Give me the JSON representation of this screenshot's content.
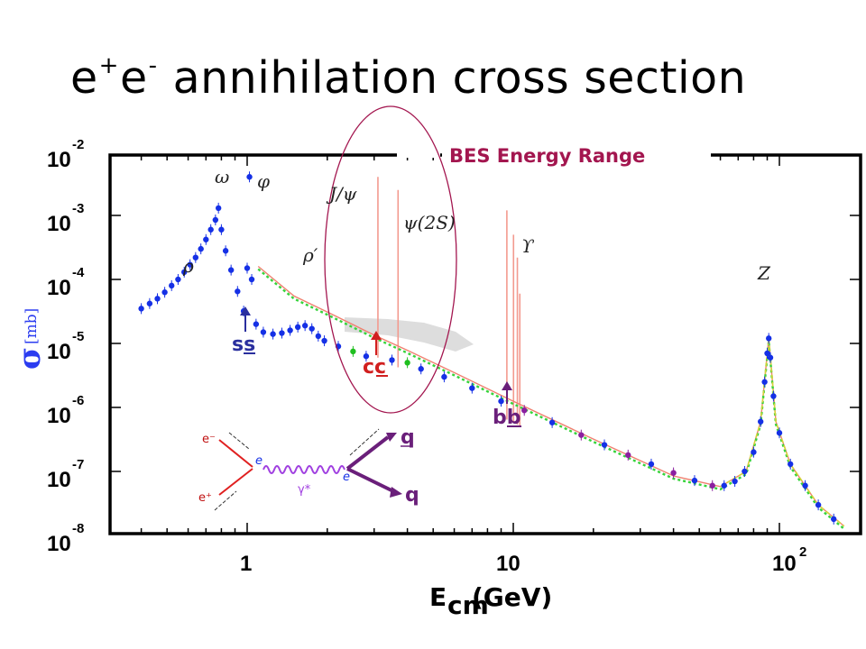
{
  "title": {
    "pre": "e",
    "sup1": "+",
    "mid": "e",
    "sup2": "-",
    "post": " annihilation cross section"
  },
  "bes_label": "BES Energy Range",
  "chart_data": {
    "type": "scatter",
    "x_label": {
      "main": "E",
      "sub": "cm",
      "rest": "(GeV)"
    },
    "y_label": {
      "symbol": "σ",
      "unit": "[mb]"
    },
    "x_scale": "log",
    "y_scale": "log",
    "xlim": [
      0.35,
      180
    ],
    "ylim": [
      1e-08,
      0.01
    ],
    "x_ticks": [
      {
        "base": "1",
        "exp": ""
      },
      {
        "base": "10",
        "exp": ""
      },
      {
        "base": "10",
        "exp": "2"
      }
    ],
    "y_ticks": [
      {
        "value": -2,
        "base": "10",
        "exp": "-2"
      },
      {
        "value": -3,
        "base": "10",
        "exp": "-3"
      },
      {
        "value": -4,
        "base": "10",
        "exp": "-4"
      },
      {
        "value": -5,
        "base": "10",
        "exp": "-5"
      },
      {
        "value": -6,
        "base": "10",
        "exp": "-6"
      },
      {
        "value": -7,
        "base": "10",
        "exp": "-7"
      },
      {
        "value": -8,
        "base": "10",
        "exp": "-8"
      }
    ],
    "resonances": [
      {
        "label": "ω",
        "x": 0.78
      },
      {
        "label": "φ",
        "x": 1.02
      },
      {
        "label": "ρ",
        "x": 0.62
      },
      {
        "label": "ρ′",
        "x": 1.65
      },
      {
        "label": "J/ψ",
        "x": 3.1
      },
      {
        "label": "ψ(2S)",
        "x": 3.69
      },
      {
        "label": "ϒ",
        "x": 9.46
      },
      {
        "label": "Z",
        "x": 91.2
      }
    ],
    "thresholds": [
      {
        "label": "ss",
        "x": 1.0,
        "color": "#2a2f9e"
      },
      {
        "label": "cc",
        "x": 3.1,
        "color": "#d11f1f"
      },
      {
        "label": "bb",
        "x": 9.46,
        "color": "#6a1f7a"
      }
    ],
    "data_points": [
      [
        0.4,
        3.5e-05
      ],
      [
        0.43,
        4.2e-05
      ],
      [
        0.46,
        5e-05
      ],
      [
        0.49,
        6.3e-05
      ],
      [
        0.52,
        8e-05
      ],
      [
        0.55,
        0.0001
      ],
      [
        0.58,
        0.00013
      ],
      [
        0.61,
        0.00017
      ],
      [
        0.64,
        0.00022
      ],
      [
        0.67,
        0.0003
      ],
      [
        0.7,
        0.00042
      ],
      [
        0.73,
        0.0006
      ],
      [
        0.76,
        0.00085
      ],
      [
        0.78,
        0.0013
      ],
      [
        0.8,
        0.0006
      ],
      [
        0.83,
        0.00028
      ],
      [
        0.87,
        0.00014
      ],
      [
        0.92,
        6.5e-05
      ],
      [
        0.97,
        3.2e-05
      ],
      [
        1.0,
        0.00015
      ],
      [
        1.02,
        0.004
      ],
      [
        1.04,
        0.0001
      ],
      [
        1.08,
        2e-05
      ],
      [
        1.15,
        1.5e-05
      ],
      [
        1.25,
        1.4e-05
      ],
      [
        1.35,
        1.45e-05
      ],
      [
        1.45,
        1.6e-05
      ],
      [
        1.55,
        1.8e-05
      ],
      [
        1.65,
        1.9e-05
      ],
      [
        1.75,
        1.7e-05
      ],
      [
        1.85,
        1.3e-05
      ],
      [
        1.95,
        1.1e-05
      ],
      [
        2.2,
        9e-06
      ],
      [
        2.5,
        7.5e-06
      ],
      [
        2.8,
        6.3e-06
      ],
      [
        3.5,
        5.5e-06
      ],
      [
        4.0,
        5e-06
      ],
      [
        4.5,
        4e-06
      ],
      [
        5.5,
        3e-06
      ],
      [
        7.0,
        2e-06
      ],
      [
        9.0,
        1.25e-06
      ],
      [
        11,
        9e-07
      ],
      [
        14,
        5.8e-07
      ],
      [
        18,
        3.7e-07
      ],
      [
        22,
        2.6e-07
      ],
      [
        27,
        1.8e-07
      ],
      [
        33,
        1.3e-07
      ],
      [
        40,
        9.5e-08
      ],
      [
        48,
        7.2e-08
      ],
      [
        56,
        6e-08
      ],
      [
        62,
        6e-08
      ],
      [
        68,
        7e-08
      ],
      [
        74,
        1e-07
      ],
      [
        80,
        2e-07
      ],
      [
        85,
        6e-07
      ],
      [
        88,
        2.5e-06
      ],
      [
        90,
        7e-06
      ],
      [
        91.2,
        1.2e-05
      ],
      [
        92.5,
        6e-06
      ],
      [
        95,
        1.5e-06
      ],
      [
        100,
        4e-07
      ],
      [
        110,
        1.3e-07
      ],
      [
        125,
        6e-08
      ],
      [
        140,
        3e-08
      ],
      [
        160,
        1.8e-08
      ]
    ],
    "qcd_curve": [
      [
        1.1,
        0.00016
      ],
      [
        1.5,
        5.5e-05
      ],
      [
        2.0,
        3.1e-05
      ],
      [
        3.0,
        1.35e-05
      ],
      [
        4.0,
        7.8e-06
      ],
      [
        6.0,
        3.5e-06
      ],
      [
        10,
        1.25e-06
      ],
      [
        20,
        3.2e-07
      ],
      [
        40,
        8.5e-08
      ],
      [
        60,
        5.8e-08
      ],
      [
        75,
        1e-07
      ],
      [
        85,
        6e-07
      ],
      [
        91.2,
        1.2e-05
      ],
      [
        97,
        6e-07
      ],
      [
        110,
        1.3e-07
      ],
      [
        140,
        3e-08
      ],
      [
        175,
        1.4e-08
      ]
    ]
  },
  "feynman": {
    "e_minus": "e⁻",
    "e_plus": "e⁺",
    "vertex_left": "e",
    "vertex_right": "e",
    "photon": "γ*",
    "quark_top": "q",
    "quark_bottom": "q"
  },
  "colors": {
    "data": "#1530e6",
    "curve_red": "#f08070",
    "curve_green": "#36d33a",
    "curve_yellow": "#d7d23a",
    "ellipse": "#a3164f"
  }
}
